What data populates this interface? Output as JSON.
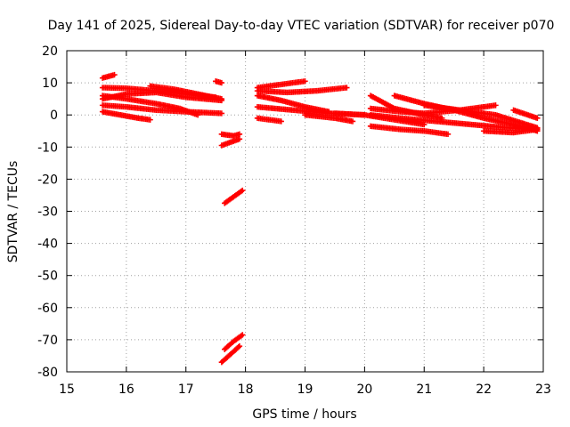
{
  "chart_data": {
    "type": "scatter",
    "title": "Day 141 of 2025, Sidereal Day-to-day VTEC variation (SDTVAR) for receiver p070",
    "xlabel": "GPS time / hours",
    "ylabel": "SDTVAR / TECUs",
    "xlim": [
      15,
      23
    ],
    "ylim": [
      -80,
      20
    ],
    "xticks": [
      "15",
      "16",
      "17",
      "18",
      "19",
      "20",
      "21",
      "22",
      "23"
    ],
    "yticks": [
      "-80",
      "-70",
      "-60",
      "-50",
      "-40",
      "-30",
      "-20",
      "-10",
      "0",
      "10",
      "20"
    ],
    "grid": true,
    "marker": "plus",
    "color": "#ff0000",
    "tracks": [
      {
        "x": [
          15.6,
          15.8
        ],
        "y": [
          11.5,
          12.5
        ]
      },
      {
        "x": [
          15.6,
          16.0,
          16.5,
          17.0,
          17.5
        ],
        "y": [
          8.5,
          8.3,
          7.5,
          6.5,
          5.5
        ]
      },
      {
        "x": [
          15.6,
          16.0,
          16.5,
          17.0,
          17.6
        ],
        "y": [
          5.0,
          6.5,
          7.0,
          5.5,
          4.5
        ]
      },
      {
        "x": [
          15.6,
          16.0,
          16.5,
          17.0,
          17.6
        ],
        "y": [
          3.0,
          2.5,
          1.5,
          1.0,
          0.5
        ]
      },
      {
        "x": [
          15.6,
          15.9,
          16.2,
          16.4
        ],
        "y": [
          1.0,
          0.0,
          -1.0,
          -1.5
        ]
      },
      {
        "x": [
          15.6,
          16.0,
          16.5,
          16.9,
          17.2
        ],
        "y": [
          6.0,
          5.0,
          3.5,
          2.0,
          0.0
        ]
      },
      {
        "x": [
          16.4,
          16.8,
          17.2,
          17.6
        ],
        "y": [
          9.0,
          8.0,
          6.5,
          5.0
        ]
      },
      {
        "x": [
          17.5,
          17.6
        ],
        "y": [
          10.5,
          10.0
        ]
      },
      {
        "x": [
          17.6,
          17.8,
          17.9
        ],
        "y": [
          -6.0,
          -6.5,
          -6.0
        ]
      },
      {
        "x": [
          17.6,
          17.75,
          17.9
        ],
        "y": [
          -9.5,
          -8.5,
          -7.5
        ]
      },
      {
        "x": [
          17.65,
          17.8,
          17.95
        ],
        "y": [
          -27.5,
          -25.5,
          -23.5
        ]
      },
      {
        "x": [
          17.65,
          17.8,
          17.95
        ],
        "y": [
          -73.0,
          -70.5,
          -68.5
        ]
      },
      {
        "x": [
          17.6,
          17.75,
          17.9
        ],
        "y": [
          -77.0,
          -74.5,
          -72.0
        ]
      },
      {
        "x": [
          18.2,
          18.6,
          19.0
        ],
        "y": [
          8.5,
          9.5,
          10.5
        ]
      },
      {
        "x": [
          18.2,
          18.7,
          19.2,
          19.7
        ],
        "y": [
          7.5,
          7.0,
          7.5,
          8.5
        ]
      },
      {
        "x": [
          18.2,
          18.6,
          19.0,
          19.4
        ],
        "y": [
          6.0,
          4.5,
          2.5,
          1.0
        ]
      },
      {
        "x": [
          18.2,
          18.8,
          19.4,
          20.0
        ],
        "y": [
          2.5,
          1.5,
          0.5,
          0.0
        ]
      },
      {
        "x": [
          18.2,
          18.6
        ],
        "y": [
          -1.0,
          -2.0
        ]
      },
      {
        "x": [
          19.0,
          19.5,
          19.8
        ],
        "y": [
          0.0,
          -1.0,
          -2.0
        ]
      },
      {
        "x": [
          19.5,
          20.0,
          20.5,
          21.0
        ],
        "y": [
          0.5,
          0.0,
          -1.5,
          -3.0
        ]
      },
      {
        "x": [
          20.1,
          20.5,
          21.0,
          21.3
        ],
        "y": [
          6.0,
          2.0,
          0.0,
          -1.0
        ]
      },
      {
        "x": [
          20.1,
          20.6,
          21.0,
          21.4
        ],
        "y": [
          -3.5,
          -4.5,
          -5.0,
          -6.0
        ]
      },
      {
        "x": [
          20.5,
          21.0,
          21.5,
          22.0,
          22.5,
          22.9
        ],
        "y": [
          6.0,
          3.5,
          1.5,
          -1.0,
          -3.0,
          -5.0
        ]
      },
      {
        "x": [
          20.1,
          20.6,
          21.0,
          21.6,
          22.2
        ],
        "y": [
          2.0,
          1.0,
          0.5,
          1.5,
          3.0
        ]
      },
      {
        "x": [
          20.1,
          20.6,
          21.2,
          21.8,
          22.4,
          22.9
        ],
        "y": [
          0.0,
          -1.0,
          -2.0,
          -3.0,
          -4.0,
          -4.5
        ]
      },
      {
        "x": [
          21.0,
          21.6,
          22.2,
          22.9
        ],
        "y": [
          3.0,
          1.5,
          0.0,
          -4.0
        ]
      },
      {
        "x": [
          22.5,
          22.9
        ],
        "y": [
          1.5,
          -1.0
        ]
      },
      {
        "x": [
          22.0,
          22.5,
          22.9
        ],
        "y": [
          -5.0,
          -5.5,
          -4.5
        ]
      }
    ]
  }
}
